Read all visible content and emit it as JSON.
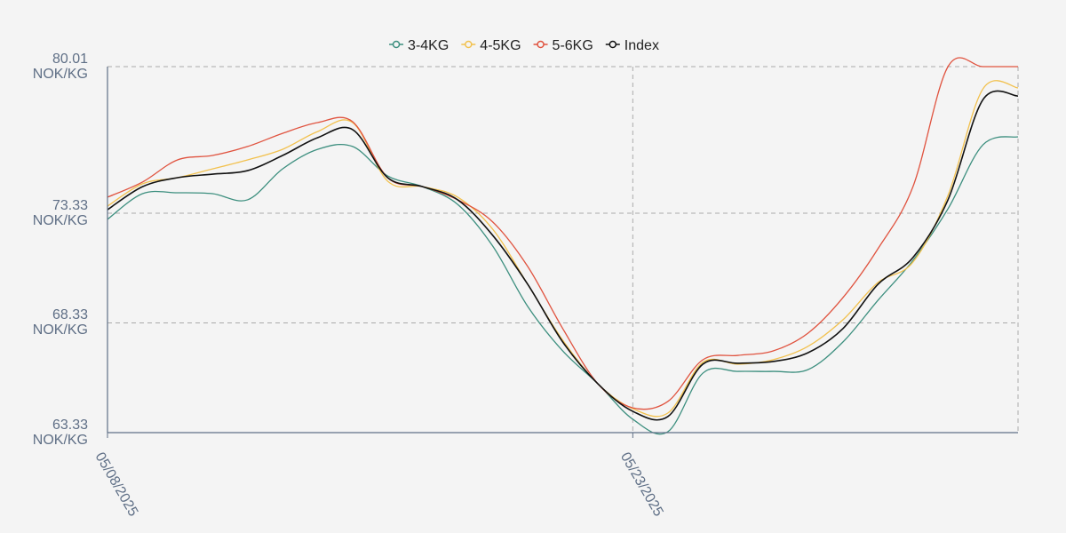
{
  "chart_data": {
    "type": "line",
    "categories": [
      "05/08/2025",
      null,
      null,
      null,
      null,
      null,
      null,
      null,
      null,
      null,
      null,
      null,
      null,
      null,
      null,
      "05/23/2025",
      null,
      null,
      null,
      null,
      null,
      null,
      null,
      null,
      null,
      null,
      null
    ],
    "series": [
      {
        "name": "3-4KG",
        "color": "#3d8f7f",
        "values": [
          73.05,
          74.22,
          74.26,
          74.22,
          73.94,
          75.35,
          76.24,
          76.37,
          75.03,
          74.54,
          73.73,
          71.83,
          69.08,
          67.05,
          65.56,
          63.94,
          63.37,
          66.04,
          66.12,
          66.12,
          66.2,
          67.46,
          69.36,
          71.18,
          73.53,
          76.45,
          76.81
        ]
      },
      {
        "name": "4-5KG",
        "color": "#f2c14e",
        "values": [
          73.65,
          74.67,
          74.95,
          75.35,
          75.76,
          76.24,
          77.05,
          77.46,
          74.79,
          74.54,
          74.06,
          72.6,
          70.09,
          67.54,
          65.56,
          64.42,
          64.22,
          66.53,
          66.45,
          66.65,
          67.26,
          68.47,
          70.17,
          71.1,
          74.14,
          79.0,
          79.04
        ]
      },
      {
        "name": "5-6KG",
        "color": "#e0533f",
        "values": [
          74.06,
          74.75,
          75.76,
          75.96,
          76.37,
          76.97,
          77.46,
          77.5,
          74.95,
          74.54,
          73.94,
          72.93,
          70.9,
          68.07,
          65.56,
          64.46,
          64.75,
          66.65,
          66.85,
          67.05,
          67.86,
          69.48,
          71.71,
          74.54,
          80.01,
          80.01,
          80.01
        ]
      },
      {
        "name": "Index",
        "color": "#111111",
        "values": [
          73.49,
          74.54,
          74.95,
          75.11,
          75.27,
          75.96,
          76.77,
          77.14,
          74.95,
          74.54,
          73.94,
          72.32,
          70.09,
          67.46,
          65.56,
          64.3,
          64.06,
          66.45,
          66.49,
          66.57,
          66.97,
          68.07,
          70.09,
          71.31,
          73.94,
          78.51,
          78.67
        ]
      }
    ],
    "ylim": [
      63.33,
      80.01
    ],
    "yticks": [
      {
        "value": 63.33,
        "label": "63.33 NOK/KG"
      },
      {
        "value": 68.33,
        "label": "68.33 NOK/KG"
      },
      {
        "value": 73.33,
        "label": "73.33 NOK/KG"
      },
      {
        "value": 80.01,
        "label": "80.01 NOK/KG"
      }
    ],
    "grid": true
  }
}
